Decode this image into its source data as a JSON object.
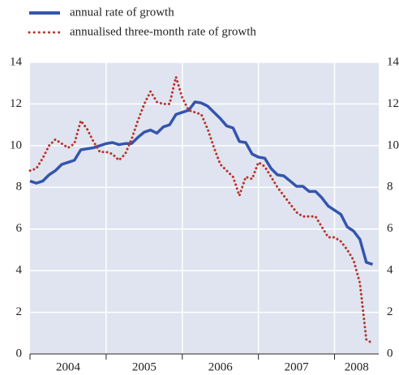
{
  "chart_data": {
    "type": "line",
    "x": [
      2004,
      2004.083,
      2004.167,
      2004.25,
      2004.333,
      2004.417,
      2004.5,
      2004.583,
      2004.667,
      2004.75,
      2004.833,
      2004.917,
      2005,
      2005.083,
      2005.167,
      2005.25,
      2005.333,
      2005.417,
      2005.5,
      2005.583,
      2005.667,
      2005.75,
      2005.833,
      2005.917,
      2006,
      2006.083,
      2006.167,
      2006.25,
      2006.333,
      2006.417,
      2006.5,
      2006.583,
      2006.667,
      2006.75,
      2006.833,
      2006.917,
      2007,
      2007.083,
      2007.167,
      2007.25,
      2007.333,
      2007.417,
      2007.5,
      2007.583,
      2007.667,
      2007.75,
      2007.833,
      2007.917,
      2008,
      2008.083,
      2008.167,
      2008.25,
      2008.333,
      2008.417,
      2008.5
    ],
    "series": [
      {
        "name": "annual rate of growth",
        "color": "#3455ad",
        "style": "solid",
        "values": [
          8.3,
          8.2,
          8.3,
          8.6,
          8.8,
          9.1,
          9.2,
          9.3,
          9.8,
          9.85,
          9.9,
          10.0,
          10.1,
          10.15,
          10.05,
          10.1,
          10.1,
          10.4,
          10.65,
          10.75,
          10.6,
          10.9,
          11.0,
          11.5,
          11.6,
          11.7,
          12.1,
          12.05,
          11.9,
          11.6,
          11.3,
          10.95,
          10.85,
          10.2,
          10.15,
          9.6,
          9.45,
          9.4,
          8.9,
          8.6,
          8.55,
          8.3,
          8.05,
          8.05,
          7.8,
          7.8,
          7.5,
          7.1,
          6.9,
          6.7,
          6.1,
          5.9,
          5.5,
          4.4,
          4.3
        ]
      },
      {
        "name": "annualised three-month rate of growth",
        "color": "#b9342a",
        "style": "dotted",
        "values": [
          8.8,
          8.9,
          9.4,
          10.0,
          10.3,
          10.1,
          9.9,
          10.1,
          11.2,
          10.8,
          10.2,
          9.7,
          9.7,
          9.6,
          9.3,
          9.6,
          10.3,
          11.2,
          12.0,
          12.6,
          12.1,
          12.0,
          12.0,
          13.3,
          12.3,
          11.7,
          11.6,
          11.5,
          10.8,
          9.9,
          9.1,
          8.8,
          8.5,
          7.6,
          8.5,
          8.4,
          9.2,
          9.0,
          8.5,
          8.0,
          7.6,
          7.2,
          6.8,
          6.6,
          6.6,
          6.6,
          6.1,
          5.6,
          5.6,
          5.4,
          5.0,
          4.5,
          3.4,
          0.7,
          0.5
        ]
      }
    ],
    "xlim": [
      2004,
      2008.58
    ],
    "xticks": [
      2004,
      2005,
      2006,
      2007,
      2008
    ],
    "ylim": [
      0,
      14
    ],
    "yticks": [
      0,
      2,
      4,
      6,
      8,
      10,
      12,
      14
    ],
    "y2lim": [
      0,
      14
    ],
    "y2ticks": [
      0,
      2,
      4,
      6,
      8,
      10,
      12,
      14
    ],
    "grid": true,
    "legend": "top-left",
    "plot_background": "#dfe4f0"
  }
}
